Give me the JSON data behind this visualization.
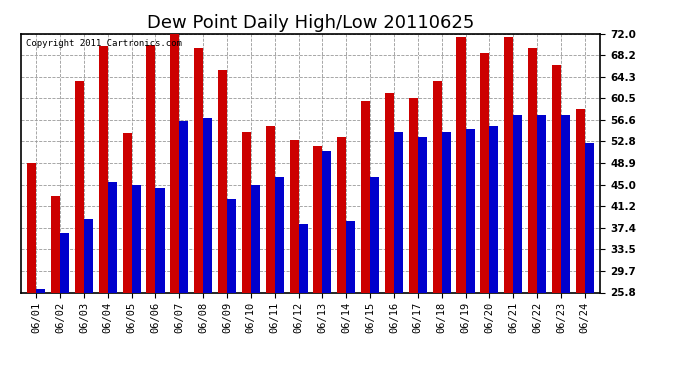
{
  "title": "Dew Point Daily High/Low 20110625",
  "copyright": "Copyright 2011 Cartronics.com",
  "dates": [
    "06/01",
    "06/02",
    "06/03",
    "06/04",
    "06/05",
    "06/06",
    "06/07",
    "06/08",
    "06/09",
    "06/10",
    "06/11",
    "06/12",
    "06/13",
    "06/14",
    "06/15",
    "06/16",
    "06/17",
    "06/18",
    "06/19",
    "06/20",
    "06/21",
    "06/22",
    "06/23",
    "06/24"
  ],
  "highs": [
    48.9,
    43.0,
    63.5,
    69.8,
    54.3,
    70.0,
    73.5,
    69.5,
    65.5,
    54.5,
    55.5,
    53.0,
    52.0,
    53.5,
    60.0,
    61.5,
    60.5,
    63.5,
    71.5,
    68.5,
    71.5,
    69.5,
    66.5,
    58.5
  ],
  "lows": [
    26.5,
    36.5,
    39.0,
    45.5,
    45.0,
    44.5,
    56.5,
    57.0,
    42.5,
    45.0,
    46.5,
    38.0,
    51.0,
    38.5,
    46.5,
    54.5,
    53.5,
    54.5,
    55.0,
    55.5,
    57.5,
    57.5,
    57.5,
    52.5
  ],
  "high_color": "#cc0000",
  "low_color": "#0000cc",
  "bg_color": "#ffffff",
  "plot_bg_color": "#ffffff",
  "grid_color": "#999999",
  "yticks": [
    25.8,
    29.7,
    33.5,
    37.4,
    41.2,
    45.0,
    48.9,
    52.8,
    56.6,
    60.5,
    64.3,
    68.2,
    72.0
  ],
  "ymin": 25.8,
  "ymax": 72.0,
  "bar_width": 0.38,
  "title_fontsize": 13,
  "tick_fontsize": 7.5,
  "copyright_fontsize": 6.5
}
